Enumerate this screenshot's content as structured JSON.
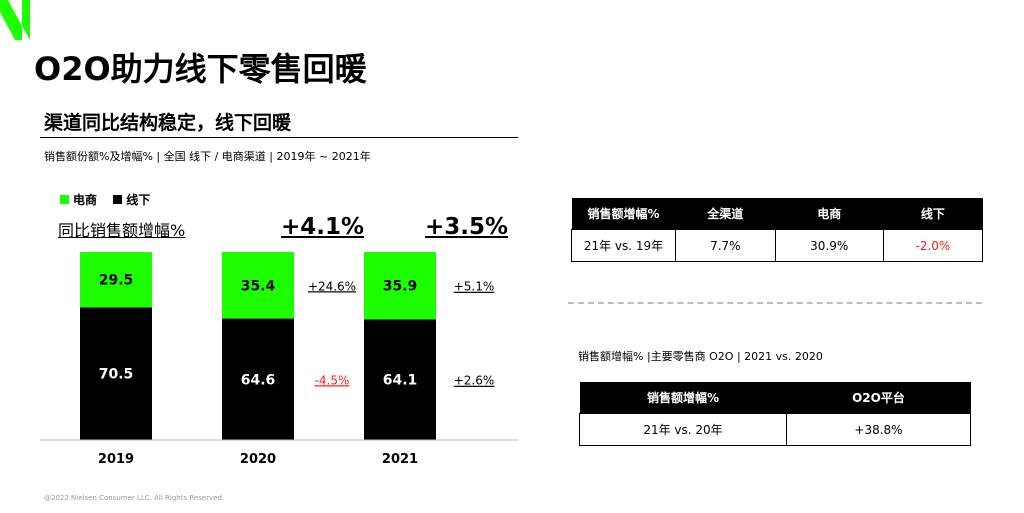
{
  "page": {
    "title": "O2O助力线下零售回暖",
    "section_title": "渠道同比结构稳定，线下回暖",
    "chart_subtitle": "销售额份额%及增幅% | 全国 线下 / 电商渠道 | 2019年 ~ 2021年",
    "footnote": "@2022 Nielsen Consumer LLC. All Rights Reserved.",
    "colors": {
      "ecommerce": "#1dff00",
      "offline": "#000000",
      "negative": "#ff1a1a",
      "logo": "#1dff00"
    }
  },
  "chart_data": {
    "type": "bar",
    "stacked": true,
    "categories": [
      "2019",
      "2020",
      "2021"
    ],
    "series": [
      {
        "name": "电商",
        "values": [
          29.5,
          35.4,
          35.9
        ],
        "growth_labels": [
          null,
          "+24.6%",
          "+5.1%"
        ]
      },
      {
        "name": "线下",
        "values": [
          70.5,
          64.6,
          64.1
        ],
        "growth_labels": [
          null,
          "-4.5%",
          "+2.6%"
        ]
      }
    ],
    "overall_label": "同比销售额增幅%",
    "overall_growth": [
      null,
      "+4.1%",
      "+3.5%"
    ],
    "ylim": [
      0,
      100
    ]
  },
  "table1": {
    "headers": [
      "销售额增幅%",
      "全渠道",
      "电商",
      "线下"
    ],
    "rows": [
      [
        "21年 vs. 19年",
        "7.7%",
        "30.9%",
        "-2.0%"
      ]
    ]
  },
  "table2": {
    "subtitle": "销售额增幅% |主要零售商 O2O | 2021 vs. 2020",
    "headers": [
      "销售额增幅%",
      "O2O平台"
    ],
    "rows": [
      [
        "21年 vs. 20年",
        "+38.8%"
      ]
    ]
  }
}
